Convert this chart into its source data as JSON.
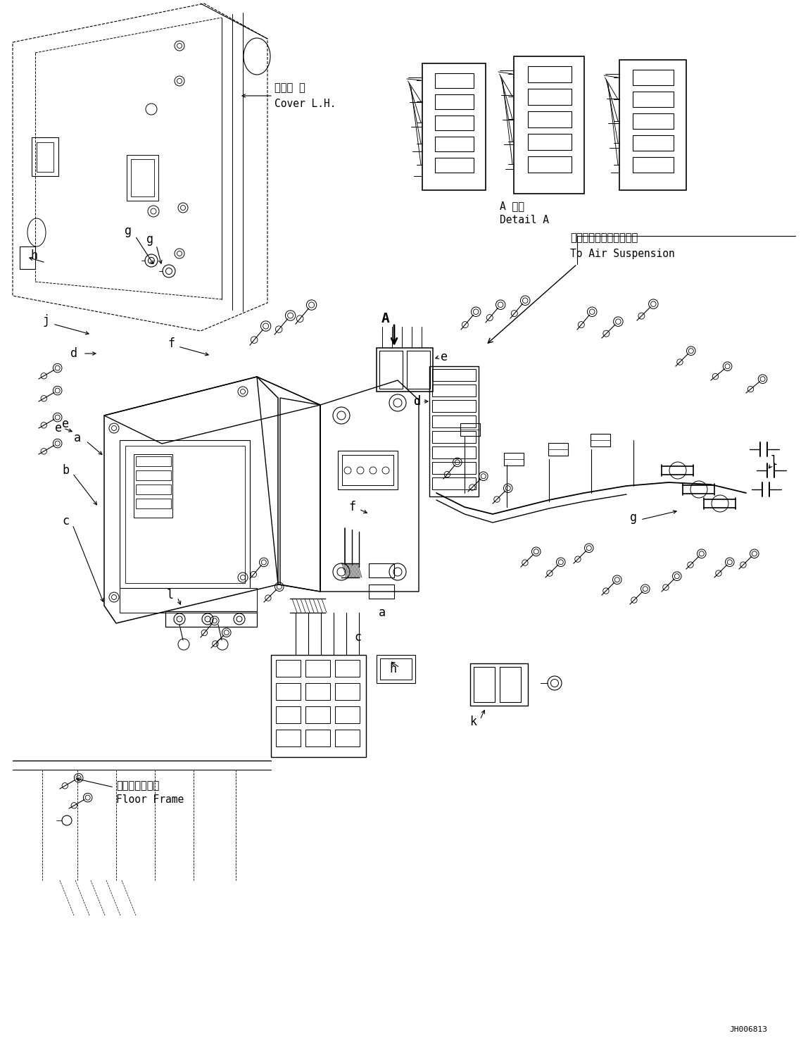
{
  "figsize": [
    11.48,
    14.91
  ],
  "dpi": 100,
  "bg_color": "#ffffff",
  "part_id": "JH006813",
  "labels": {
    "cover_lh_jp": "カバー 左",
    "cover_lh_en": "Cover L.H.",
    "detail_a_jp": "A 詳細",
    "detail_a_en": "Detail A",
    "air_suspension_jp": "エアーサスペンションへ",
    "air_suspension_en": "To Air Suspension",
    "floor_frame_jp": "フロアフレーム",
    "floor_frame_en": "Floor Frame"
  },
  "line_color": "#000000",
  "text_color": "#000000",
  "label_fontsize": 10.5,
  "small_fontsize": 8,
  "part_letter_fontsize": 12,
  "arrow_lw": 0.9
}
